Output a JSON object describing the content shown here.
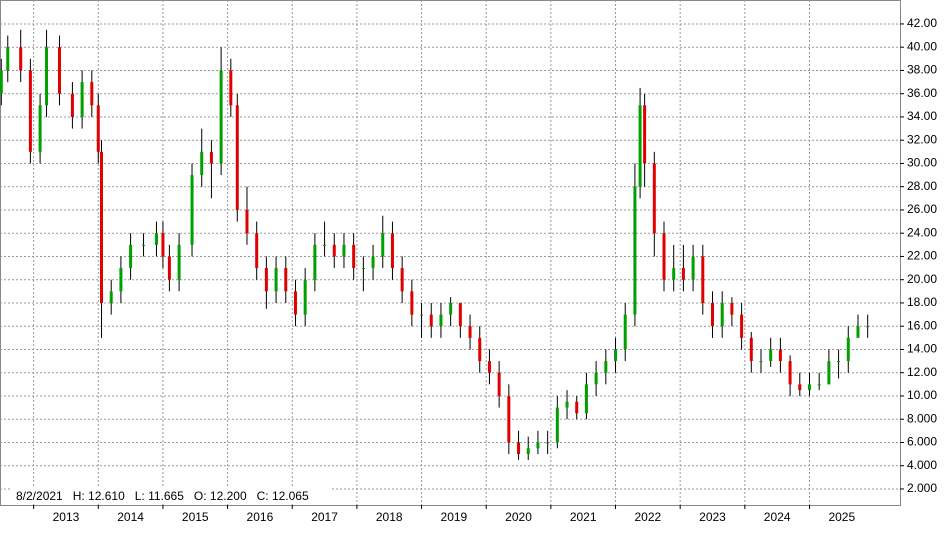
{
  "chart_data": {
    "type": "ohlc",
    "annotation": "8/2/2021   H: 12.610   L: 11.665   O: 12.200   C: 12.065",
    "x": [
      2012.5,
      2012.6,
      2012.8,
      2012.95,
      2013.1,
      2013.2,
      2013.4,
      2013.6,
      2013.75,
      2013.9,
      2014.0,
      2014.05,
      2014.2,
      2014.35,
      2014.5,
      2014.7,
      2014.9,
      2015.0,
      2015.1,
      2015.25,
      2015.45,
      2015.6,
      2015.75,
      2015.9,
      2016.05,
      2016.15,
      2016.3,
      2016.45,
      2016.6,
      2016.75,
      2016.9,
      2017.05,
      2017.2,
      2017.35,
      2017.5,
      2017.65,
      2017.8,
      2017.95,
      2018.1,
      2018.25,
      2018.4,
      2018.55,
      2018.7,
      2018.85,
      2019.0,
      2019.15,
      2019.3,
      2019.45,
      2019.6,
      2019.75,
      2019.9,
      2020.05,
      2020.2,
      2020.35,
      2020.5,
      2020.65,
      2020.8,
      2020.95,
      2021.1,
      2021.25,
      2021.4,
      2021.55,
      2021.7,
      2021.85,
      2022.0,
      2022.15,
      2022.3,
      2022.38,
      2022.45,
      2022.6,
      2022.75,
      2022.9,
      2023.05,
      2023.2,
      2023.35,
      2023.5,
      2023.65,
      2023.8,
      2023.95,
      2024.1,
      2024.25,
      2024.4,
      2024.55,
      2024.7,
      2024.85,
      2025.0,
      2025.15,
      2025.3,
      2025.45,
      2025.6,
      2025.75,
      2025.9
    ],
    "open": [
      36,
      38,
      40,
      38,
      31,
      35,
      40,
      36,
      34,
      37,
      35,
      31,
      18,
      19,
      21,
      23,
      23,
      24,
      22,
      20,
      23,
      29,
      31,
      30,
      38,
      35,
      26,
      24,
      21,
      19,
      21,
      19,
      17,
      20,
      23,
      23,
      22,
      23,
      21,
      21,
      22,
      24,
      21,
      19,
      17,
      17,
      16,
      17,
      18,
      16,
      15,
      13,
      12,
      10,
      6,
      5,
      5.5,
      6,
      6,
      9,
      9.5,
      8.5,
      11,
      12,
      13,
      14,
      17,
      28,
      35,
      30,
      24,
      20,
      21,
      20,
      22,
      18,
      16,
      18,
      17,
      15,
      13,
      13,
      14,
      13,
      11,
      10.5,
      11,
      11,
      13,
      13,
      15,
      16
    ],
    "high": [
      39,
      41,
      41.5,
      39,
      36,
      41.5,
      41,
      37,
      38,
      38,
      36,
      32,
      20,
      22,
      24,
      24,
      25,
      25,
      23,
      24,
      30,
      33,
      32,
      40,
      39,
      36,
      28,
      25,
      22,
      22,
      22,
      20,
      21,
      24,
      25,
      24,
      24,
      24,
      22,
      23,
      25.5,
      25,
      22,
      20,
      18,
      18,
      18,
      18.5,
      18,
      17,
      16,
      14,
      13,
      11,
      7,
      6.5,
      7,
      7,
      10,
      10.5,
      10,
      12,
      13,
      14,
      15,
      18,
      30,
      36.5,
      36,
      31,
      25,
      23,
      23,
      23,
      23,
      19,
      19,
      18.5,
      18,
      15.5,
      14,
      15,
      15,
      13.5,
      12,
      12,
      12,
      14,
      14,
      16,
      17,
      17
    ],
    "low": [
      35,
      37,
      37,
      30,
      30,
      34,
      35,
      33,
      33,
      34,
      30,
      15,
      17,
      18,
      20,
      22,
      22,
      21,
      19,
      19,
      22,
      28,
      27,
      29,
      34,
      25,
      23,
      20,
      17.5,
      18,
      18,
      16,
      16,
      19,
      22,
      21,
      21,
      20,
      19,
      20,
      21,
      20,
      18,
      16,
      15,
      15,
      15,
      16,
      15,
      14,
      12,
      11,
      9,
      5,
      4.5,
      4.5,
      5,
      5,
      5.5,
      8,
      8,
      8,
      10,
      11,
      12,
      13,
      16,
      27,
      28,
      22,
      19,
      19,
      19,
      19,
      17,
      15,
      15,
      16,
      14,
      12,
      12,
      12.5,
      12,
      10,
      10,
      10,
      10.5,
      11,
      11.5,
      12,
      15,
      15
    ],
    "close": [
      38,
      40,
      38,
      31,
      35,
      40,
      36,
      34,
      37,
      35,
      31,
      18,
      19,
      21,
      23,
      23,
      24,
      22,
      20,
      23,
      29,
      31,
      30,
      38,
      35,
      26,
      24,
      21,
      19,
      21,
      19,
      17,
      20,
      23,
      23,
      22,
      23,
      21,
      21,
      22,
      24,
      21,
      19,
      17,
      17,
      16,
      17,
      18,
      16,
      15,
      13,
      12,
      10,
      6,
      5,
      5.5,
      6,
      6,
      9,
      9.5,
      8.5,
      11,
      12,
      13,
      14,
      17,
      28,
      35,
      30,
      24,
      20,
      21,
      20,
      22,
      18,
      16,
      18,
      17,
      15,
      13,
      13,
      14,
      13,
      11,
      10.5,
      11,
      11,
      13,
      13,
      15,
      16,
      16
    ],
    "up_color": "#00a000",
    "down_color": "#e00000",
    "wick_color": "#000000",
    "xlim": [
      2012.48,
      2026.4
    ],
    "xticks": [
      2013,
      2014,
      2015,
      2016,
      2017,
      2018,
      2019,
      2020,
      2021,
      2022,
      2023,
      2024,
      2025
    ],
    "ylim": [
      0.62,
      44.06
    ],
    "yticks": [
      {
        "value": 2,
        "label": "2.000"
      },
      {
        "value": 4,
        "label": "4.000"
      },
      {
        "value": 6,
        "label": "6.000"
      },
      {
        "value": 8,
        "label": "8.000"
      },
      {
        "value": 10,
        "label": "10.00"
      },
      {
        "value": 12,
        "label": "12.00"
      },
      {
        "value": 14,
        "label": "14.00"
      },
      {
        "value": 16,
        "label": "16.00"
      },
      {
        "value": 18,
        "label": "18.00"
      },
      {
        "value": 20,
        "label": "20.00"
      },
      {
        "value": 22,
        "label": "22.00"
      },
      {
        "value": 24,
        "label": "24.00"
      },
      {
        "value": 26,
        "label": "26.00"
      },
      {
        "value": 28,
        "label": "28.00"
      },
      {
        "value": 30,
        "label": "30.00"
      },
      {
        "value": 32,
        "label": "32.00"
      },
      {
        "value": 34,
        "label": "34.00"
      },
      {
        "value": 36,
        "label": "36.00"
      },
      {
        "value": 38,
        "label": "38.00"
      },
      {
        "value": 40,
        "label": "40.00"
      },
      {
        "value": 42,
        "label": "42.00"
      }
    ],
    "grid": true
  }
}
